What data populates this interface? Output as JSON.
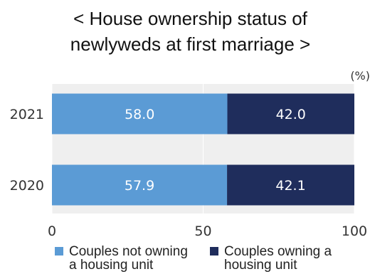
{
  "title_lines": [
    "< House ownership status of",
    "newlyweds at first marriage >"
  ],
  "colors": {
    "not_owning": "#5b9bd5",
    "owning": "#1f2d5c",
    "background": "#efefef",
    "grid": "#ffffff"
  },
  "chart_data": {
    "type": "bar",
    "orientation": "horizontal",
    "stacked": true,
    "unit_label": "(%)",
    "categories": [
      "2021",
      "2020"
    ],
    "series": [
      {
        "name": "Couples not owning a housing unit",
        "values": [
          58.0,
          57.9
        ],
        "labels": [
          "58.0",
          "57.9"
        ],
        "color": "#5b9bd5"
      },
      {
        "name": "Couples owning a housing unit",
        "values": [
          42.0,
          42.1
        ],
        "labels": [
          "42.0",
          "42.1"
        ],
        "color": "#1f2d5c"
      }
    ],
    "xlim": [
      0,
      100
    ],
    "xticks": [
      0,
      50,
      100
    ],
    "xtick_labels": [
      "0",
      "50",
      "100"
    ],
    "grid": true,
    "legend_position": "bottom"
  },
  "legend": {
    "items": [
      {
        "label": "Couples not owning\na housing unit",
        "color": "#5b9bd5"
      },
      {
        "label": "Couples owning a\nhousing unit",
        "color": "#1f2d5c"
      }
    ]
  }
}
